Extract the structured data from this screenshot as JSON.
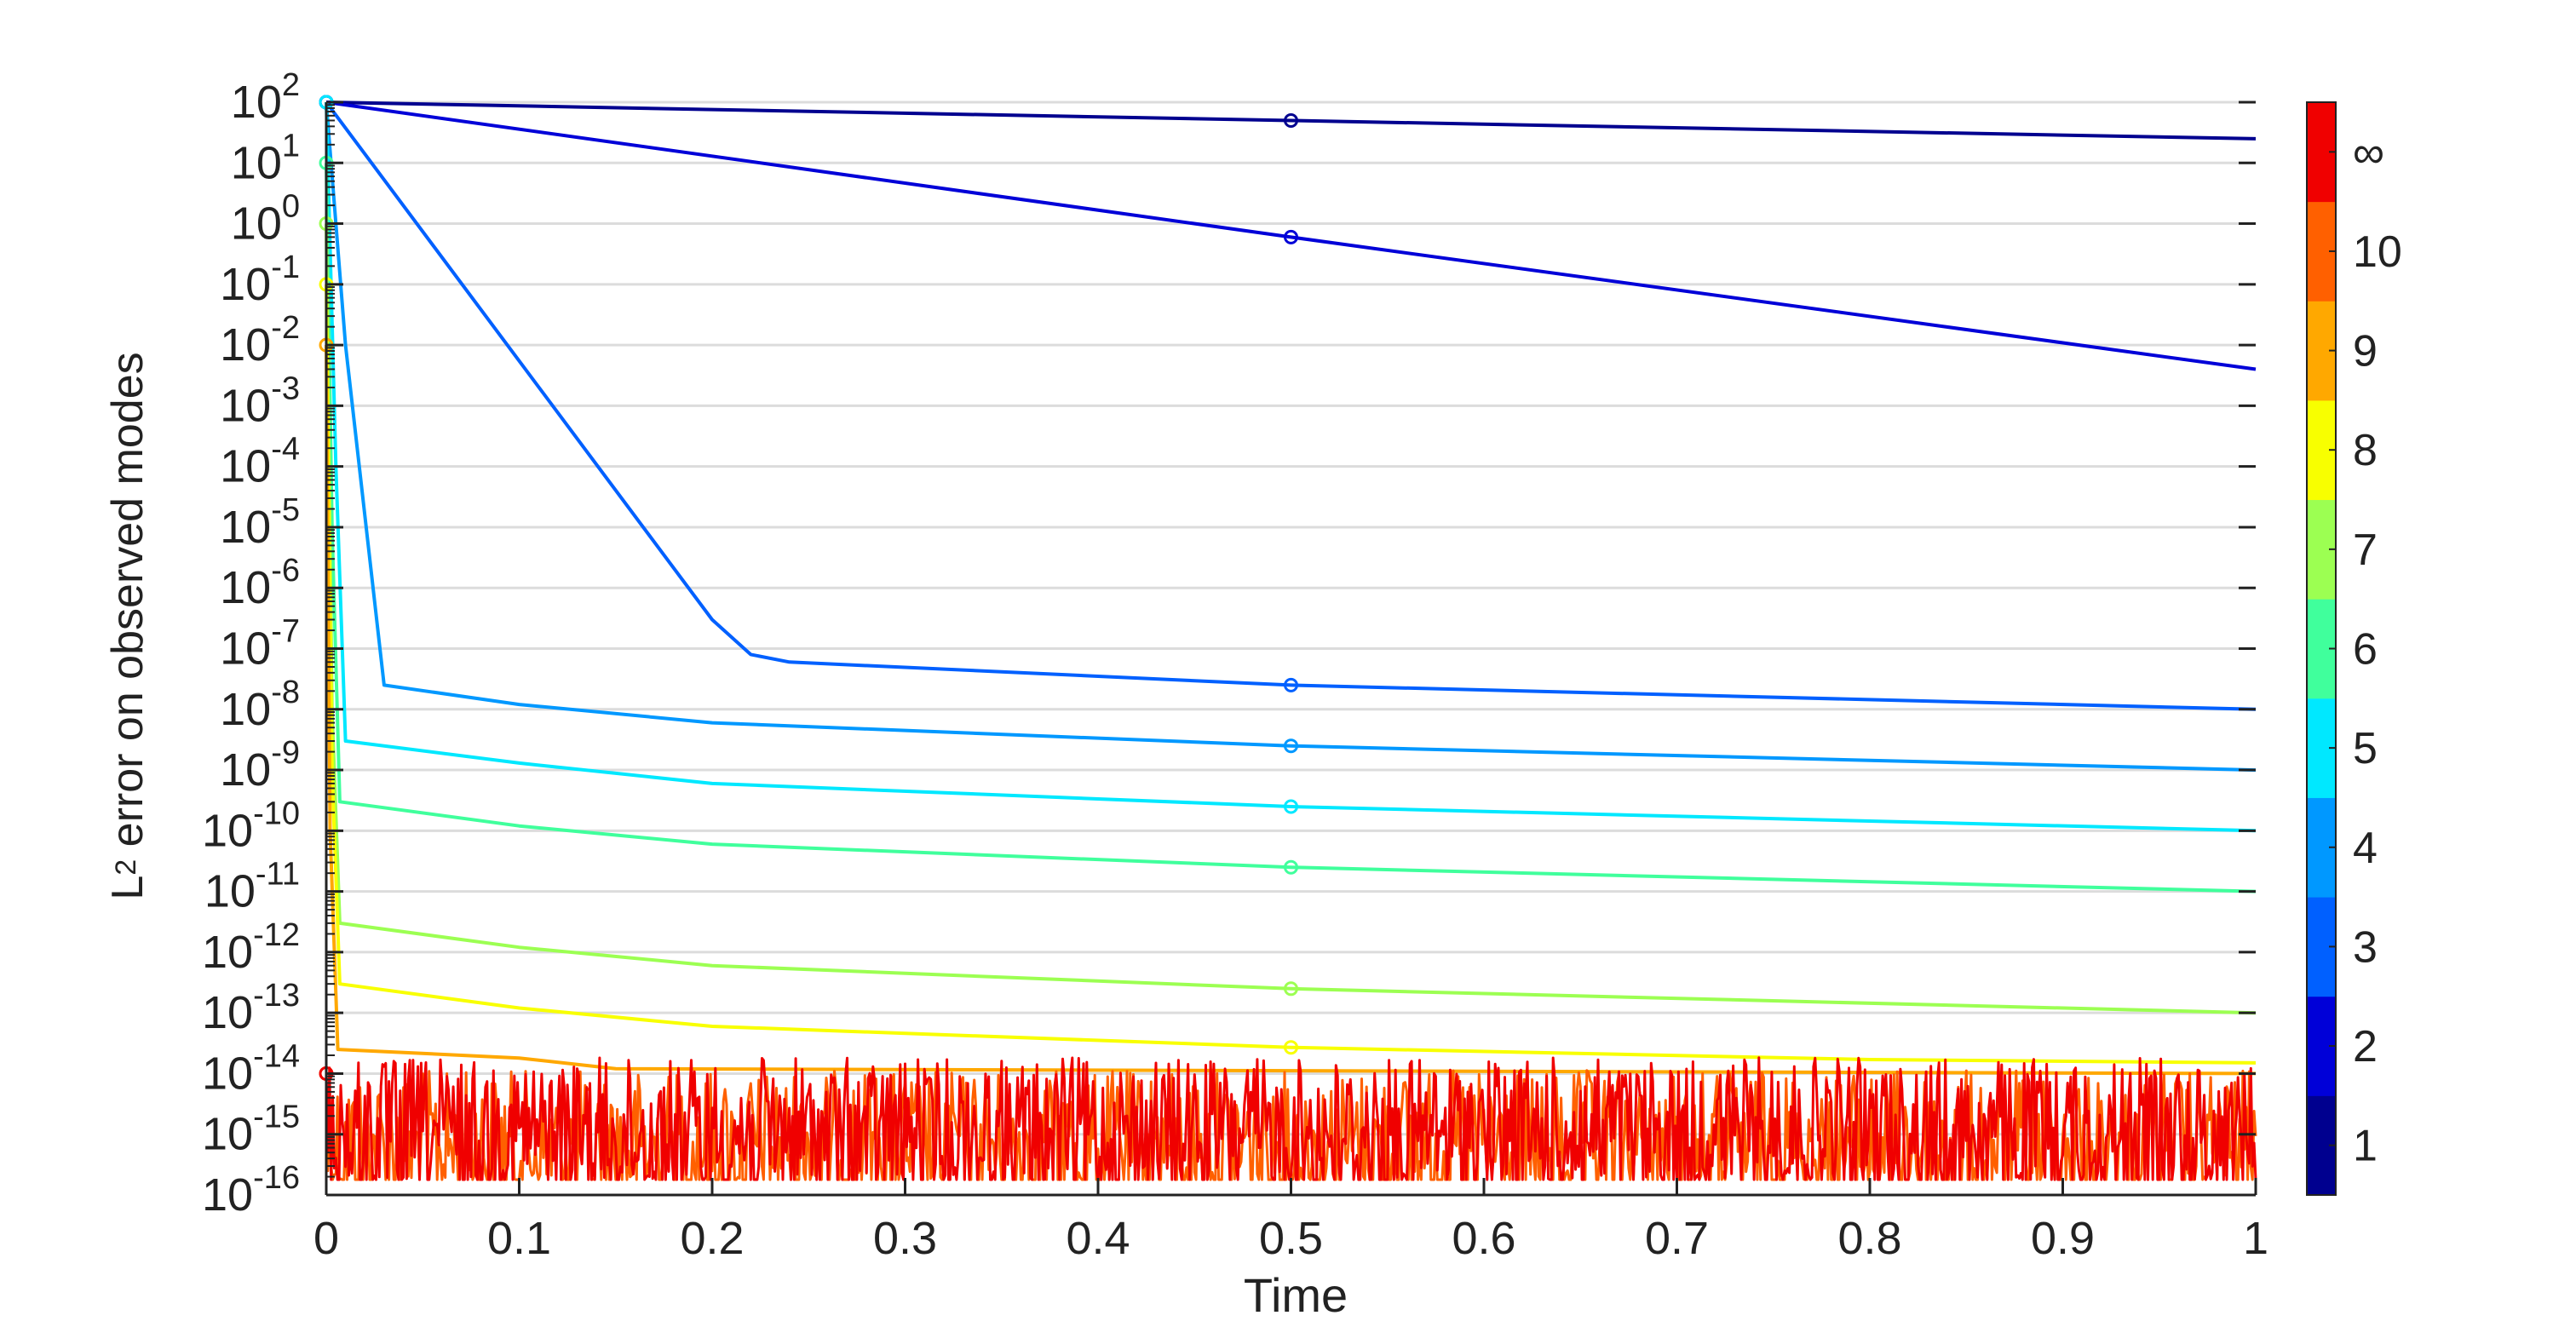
{
  "chart_data": {
    "type": "line",
    "xlabel": "Time",
    "ylabel": {
      "base": "L",
      "sup": "2",
      "rest": " error on observed modes"
    },
    "xlim": [
      0,
      1
    ],
    "ylim": [
      1e-16,
      100
    ],
    "yscale": "log",
    "grid": "horizontal",
    "x_ticks": [
      "0",
      "0.1",
      "0.2",
      "0.3",
      "0.4",
      "0.5",
      "0.6",
      "0.7",
      "0.8",
      "0.9",
      "1"
    ],
    "y_ticks": [
      {
        "base": "10",
        "exp": "2"
      },
      {
        "base": "10",
        "exp": "1"
      },
      {
        "base": "10",
        "exp": "0"
      },
      {
        "base": "10",
        "exp": "-1"
      },
      {
        "base": "10",
        "exp": "-2"
      },
      {
        "base": "10",
        "exp": "-3"
      },
      {
        "base": "10",
        "exp": "-4"
      },
      {
        "base": "10",
        "exp": "-5"
      },
      {
        "base": "10",
        "exp": "-6"
      },
      {
        "base": "10",
        "exp": "-7"
      },
      {
        "base": "10",
        "exp": "-8"
      },
      {
        "base": "10",
        "exp": "-9"
      },
      {
        "base": "10",
        "exp": "-10"
      },
      {
        "base": "10",
        "exp": "-11"
      },
      {
        "base": "10",
        "exp": "-12"
      },
      {
        "base": "10",
        "exp": "-13"
      },
      {
        "base": "10",
        "exp": "-14"
      },
      {
        "base": "10",
        "exp": "-15"
      },
      {
        "base": "10",
        "exp": "-16"
      }
    ],
    "colorbar": {
      "placement": "right",
      "labels": [
        "1",
        "2",
        "3",
        "4",
        "5",
        "6",
        "7",
        "8",
        "9",
        "10",
        "∞"
      ],
      "colors": [
        "#00008f",
        "#0000d8",
        "#0060ff",
        "#0098ff",
        "#00e8ff",
        "#40ff9c",
        "#9cff52",
        "#f8ff00",
        "#ffa800",
        "#ff6000",
        "#f00000"
      ]
    },
    "series": [
      {
        "color": "#00008f",
        "x": [
          0,
          0.5,
          1
        ],
        "y": [
          100,
          50,
          25
        ]
      },
      {
        "color": "#0000d8",
        "x": [
          0,
          0.5,
          1
        ],
        "y": [
          100,
          0.6,
          0.004
        ]
      },
      {
        "color": "#0060ff",
        "x": [
          0,
          0.2,
          0.22,
          0.24,
          0.5,
          1
        ],
        "y": [
          100,
          3e-07,
          8e-08,
          6e-08,
          2.5e-08,
          1e-08
        ]
      },
      {
        "color": "#0098ff",
        "x": [
          0,
          0.01,
          0.03,
          0.1,
          0.2,
          0.5,
          1
        ],
        "y": [
          100,
          0.01,
          2.5e-08,
          1.2e-08,
          6e-09,
          2.5e-09,
          1e-09
        ]
      },
      {
        "color": "#00e8ff",
        "x": [
          0,
          0.005,
          0.01,
          0.1,
          0.2,
          0.5,
          1
        ],
        "y": [
          100,
          0.0001,
          3e-09,
          1.3e-09,
          6e-10,
          2.5e-10,
          1e-10
        ]
      },
      {
        "color": "#40ff9c",
        "x": [
          0,
          0.003,
          0.007,
          0.1,
          0.2,
          0.5,
          1
        ],
        "y": [
          10,
          1e-05,
          3e-10,
          1.2e-10,
          6e-11,
          2.5e-11,
          1e-11
        ]
      },
      {
        "color": "#9cff52",
        "x": [
          0,
          0.003,
          0.007,
          0.1,
          0.2,
          0.5,
          1
        ],
        "y": [
          1,
          1e-08,
          3e-12,
          1.2e-12,
          6e-13,
          2.5e-13,
          1e-13
        ]
      },
      {
        "color": "#f8ff00",
        "x": [
          0,
          0.003,
          0.007,
          0.1,
          0.2,
          0.5,
          0.8,
          1
        ],
        "y": [
          0.1,
          1e-09,
          3e-13,
          1.2e-13,
          6e-14,
          2.7e-14,
          1.7e-14,
          1.5e-14
        ]
      },
      {
        "color": "#ffa800",
        "x": [
          0,
          0.002,
          0.006,
          0.1,
          0.15,
          1
        ],
        "y": [
          0.01,
          1e-10,
          2.5e-14,
          1.8e-14,
          1.2e-14,
          1e-14
        ]
      },
      {
        "color": "#ff6000",
        "noise": true,
        "x": [
          0,
          1
        ],
        "y": [
          1e-14,
          1e-15
        ]
      },
      {
        "color": "#f00000",
        "noise": true,
        "x": [
          0,
          1
        ],
        "y": [
          1e-14,
          1e-15
        ]
      }
    ]
  }
}
